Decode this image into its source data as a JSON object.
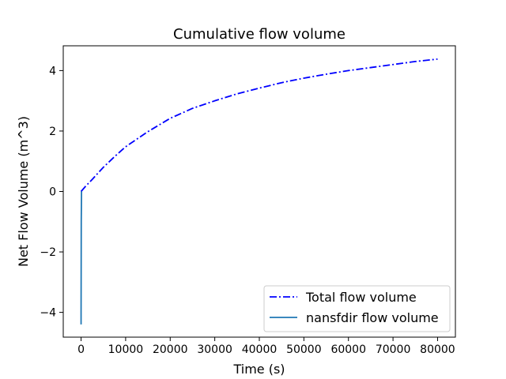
{
  "chart_data": {
    "type": "line",
    "title": "Cumulative flow volume",
    "xlabel": "Time (s)",
    "ylabel": "Net Flow Volume (m^3)",
    "xlim": [
      -4000,
      84000
    ],
    "ylim": [
      -4.82,
      4.82
    ],
    "x_ticks": [
      0,
      10000,
      20000,
      30000,
      40000,
      50000,
      60000,
      70000,
      80000
    ],
    "x_tick_labels": [
      "0",
      "10000",
      "20000",
      "30000",
      "40000",
      "50000",
      "60000",
      "70000",
      "80000"
    ],
    "y_ticks": [
      -4,
      -2,
      0,
      2,
      4
    ],
    "y_tick_labels": [
      "−4",
      "−2",
      "0",
      "2",
      "4"
    ],
    "grid": false,
    "legend_position": "lower-right",
    "series": [
      {
        "name": "Total flow volume",
        "color": "#0000ff",
        "style": "dash-dot",
        "x": [
          0,
          1000,
          2500,
          5000,
          7500,
          10000,
          15000,
          20000,
          25000,
          30000,
          35000,
          40000,
          45000,
          50000,
          55000,
          60000,
          65000,
          70000,
          75000,
          80000
        ],
        "y": [
          0.0,
          0.17,
          0.4,
          0.8,
          1.15,
          1.48,
          1.98,
          2.42,
          2.75,
          3.0,
          3.23,
          3.42,
          3.6,
          3.75,
          3.88,
          4.0,
          4.1,
          4.2,
          4.3,
          4.38
        ]
      },
      {
        "name": "nansfdir flow volume",
        "color": "#1f77b4",
        "style": "solid",
        "x": [
          0,
          0,
          40,
          100
        ],
        "y": [
          -4.4,
          -4.0,
          -1.0,
          0.0
        ]
      }
    ]
  }
}
